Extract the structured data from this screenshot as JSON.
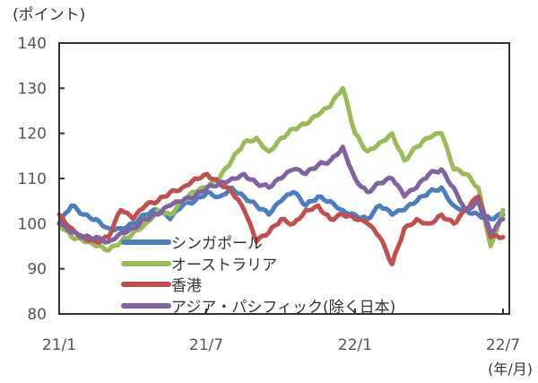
{
  "chart_data": {
    "type": "line",
    "title": "",
    "ylabel": "(ポイント)",
    "xlabel": "(年/月)",
    "ylim": [
      80,
      140
    ],
    "yticks": [
      80,
      90,
      100,
      110,
      120,
      130,
      140
    ],
    "xticks": [
      "21/1",
      "21/7",
      "22/1",
      "22/7"
    ],
    "grid": false,
    "legend_position": "inside-lower-left",
    "x": [
      "21/1",
      "",
      "21/2",
      "",
      "21/3",
      "",
      "21/4",
      "",
      "21/5",
      "",
      "21/6",
      "",
      "21/7",
      "",
      "21/8",
      "",
      "21/9",
      "",
      "21/10",
      "",
      "21/11",
      "",
      "21/12",
      "",
      "22/1",
      "",
      "22/2",
      "",
      "22/3",
      "",
      "22/4",
      "",
      "22/5",
      "",
      "22/6",
      "",
      "22/7"
    ],
    "series": [
      {
        "name": "シンガポール",
        "color": "#4a7ebf",
        "values": [
          100,
          104,
          102,
          101,
          99,
          99,
          100,
          102,
          103,
          101,
          104,
          105,
          107,
          106,
          108,
          106,
          104,
          102,
          105,
          107,
          104,
          106,
          105,
          103,
          102,
          101,
          104,
          102,
          103,
          105,
          107,
          108,
          104,
          103,
          102,
          101,
          102
        ]
      },
      {
        "name": "オーストラリア",
        "color": "#9bbb59",
        "values": [
          100,
          97,
          96,
          95,
          94,
          96,
          98,
          100,
          103,
          102,
          105,
          107,
          108,
          110,
          114,
          118,
          119,
          116,
          119,
          121,
          122,
          124,
          126,
          130,
          120,
          116,
          118,
          120,
          114,
          117,
          119,
          120,
          112,
          111,
          108,
          95,
          103
        ]
      },
      {
        "name": "香港",
        "color": "#c0504d",
        "values": [
          102,
          99,
          97,
          96,
          97,
          103,
          101,
          104,
          105,
          107,
          108,
          110,
          111,
          109,
          107,
          103,
          96,
          98,
          101,
          100,
          103,
          104,
          101,
          102,
          101,
          100,
          97,
          91,
          99,
          101,
          100,
          102,
          100,
          103,
          106,
          97,
          97
        ]
      },
      {
        "name": "アジア・パシフィック(除く日本)",
        "color": "#8064a2",
        "values": [
          100,
          98,
          97,
          97,
          96,
          98,
          99,
          101,
          102,
          104,
          105,
          106,
          108,
          109,
          110,
          111,
          109,
          108,
          110,
          112,
          111,
          113,
          114,
          117,
          110,
          107,
          109,
          110,
          106,
          108,
          111,
          112,
          108,
          103,
          105,
          98,
          101
        ]
      }
    ]
  },
  "axis": {
    "y_unit": "(ポイント)",
    "x_unit": "(年/月)",
    "y_labels": [
      "140",
      "130",
      "120",
      "110",
      "100",
      "90",
      "80"
    ],
    "x_labels": [
      "21/1",
      "21/7",
      "22/1",
      "22/7"
    ]
  },
  "legend": [
    {
      "label": "シンガポール",
      "color": "#4a7ebf"
    },
    {
      "label": "オーストラリア",
      "color": "#9bbb59"
    },
    {
      "label": "香港",
      "color": "#c0504d"
    },
    {
      "label": "アジア・パシフィック(除く日本)",
      "color": "#8064a2"
    }
  ]
}
